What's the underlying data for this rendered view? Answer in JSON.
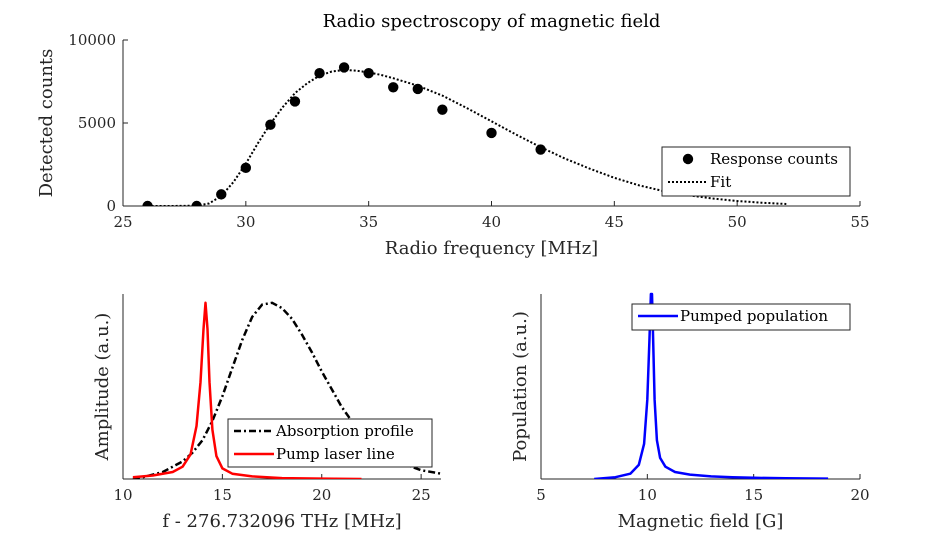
{
  "chart_data": [
    {
      "type": "scatter",
      "title": "Radio spectroscopy of magnetic field",
      "xlabel": "Radio frequency [MHz]",
      "ylabel": "Detected counts",
      "xlim": [
        25,
        55
      ],
      "ylim": [
        0,
        10000
      ],
      "xticks": [
        25,
        30,
        35,
        40,
        45,
        50,
        55
      ],
      "yticks": [
        0,
        5000,
        10000
      ],
      "legend_position": "right",
      "series": [
        {
          "name": "Response counts",
          "style": "markers",
          "color": "#000000",
          "x": [
            26,
            28,
            29,
            30,
            31,
            32,
            33,
            34,
            35,
            36,
            37,
            38,
            40,
            42
          ],
          "y": [
            0,
            0,
            700,
            2300,
            4900,
            6300,
            8000,
            8350,
            8000,
            7150,
            7050,
            5800,
            4400,
            3400
          ]
        },
        {
          "name": "Fit",
          "style": "dotted-line",
          "color": "#000000",
          "x": [
            26,
            27,
            28,
            28.5,
            29,
            29.5,
            30,
            30.5,
            31,
            31.5,
            32,
            32.5,
            33,
            33.5,
            34,
            34.5,
            35,
            35.5,
            36,
            37,
            38,
            39,
            40,
            41,
            42,
            43,
            44,
            45,
            46,
            47,
            48,
            49,
            50,
            51,
            52
          ],
          "y": [
            0,
            0,
            20,
            150,
            600,
            1450,
            2550,
            3800,
            4950,
            5950,
            6800,
            7400,
            7850,
            8100,
            8200,
            8150,
            8050,
            7900,
            7700,
            7250,
            6650,
            5900,
            5100,
            4300,
            3550,
            2850,
            2250,
            1700,
            1250,
            900,
            650,
            450,
            300,
            200,
            120
          ]
        }
      ]
    },
    {
      "type": "line",
      "title": "",
      "xlabel": "f - 276.732096 THz [MHz]",
      "ylabel": "Amplitude (a.u.)",
      "xlim": [
        10,
        26
      ],
      "ylim": [
        0,
        1.05
      ],
      "xticks": [
        10,
        15,
        20,
        25
      ],
      "yticks": [],
      "legend_position": "bottom-right",
      "series": [
        {
          "name": "Absorption profile",
          "style": "dash-dot",
          "color": "#000000",
          "x": [
            10.5,
            11,
            12,
            13,
            13.5,
            14,
            14.5,
            15,
            15.5,
            16,
            16.5,
            17,
            17.5,
            18,
            18.5,
            19,
            19.5,
            20,
            20.5,
            21,
            21.5,
            22,
            22.5,
            23,
            24,
            25,
            26
          ],
          "y": [
            0.0,
            0.01,
            0.04,
            0.1,
            0.15,
            0.22,
            0.33,
            0.47,
            0.63,
            0.79,
            0.92,
            0.99,
            1.0,
            0.97,
            0.91,
            0.82,
            0.72,
            0.61,
            0.51,
            0.41,
            0.33,
            0.26,
            0.2,
            0.15,
            0.09,
            0.05,
            0.03
          ]
        },
        {
          "name": "Pump laser line",
          "style": "solid",
          "color": "#ff0000",
          "x": [
            10.5,
            11.5,
            12.5,
            13,
            13.4,
            13.7,
            13.9,
            14.05,
            14.15,
            14.25,
            14.35,
            14.5,
            14.7,
            15,
            15.5,
            16.5,
            18,
            20,
            22
          ],
          "y": [
            0.01,
            0.02,
            0.04,
            0.07,
            0.14,
            0.3,
            0.55,
            0.85,
            1.0,
            0.85,
            0.55,
            0.28,
            0.13,
            0.06,
            0.03,
            0.015,
            0.005,
            0.002,
            0.0
          ]
        }
      ]
    },
    {
      "type": "line",
      "title": "",
      "xlabel": "Magnetic field [G]",
      "ylabel": "Population (a.u.)",
      "xlim": [
        5,
        20
      ],
      "ylim": [
        0,
        1.05
      ],
      "xticks": [
        5,
        10,
        15,
        20
      ],
      "yticks": [],
      "legend_position": "top-right",
      "series": [
        {
          "name": "Pumped population",
          "style": "solid",
          "color": "#0000ff",
          "x": [
            7.5,
            8.5,
            9.2,
            9.6,
            9.85,
            10.0,
            10.1,
            10.17,
            10.22,
            10.27,
            10.34,
            10.45,
            10.6,
            10.85,
            11.3,
            12,
            13,
            14,
            15,
            16.5,
            18.5
          ],
          "y": [
            0.0,
            0.01,
            0.03,
            0.08,
            0.2,
            0.45,
            0.8,
            1.05,
            1.05,
            0.8,
            0.45,
            0.22,
            0.12,
            0.07,
            0.04,
            0.025,
            0.015,
            0.01,
            0.007,
            0.004,
            0.002
          ]
        }
      ]
    }
  ]
}
